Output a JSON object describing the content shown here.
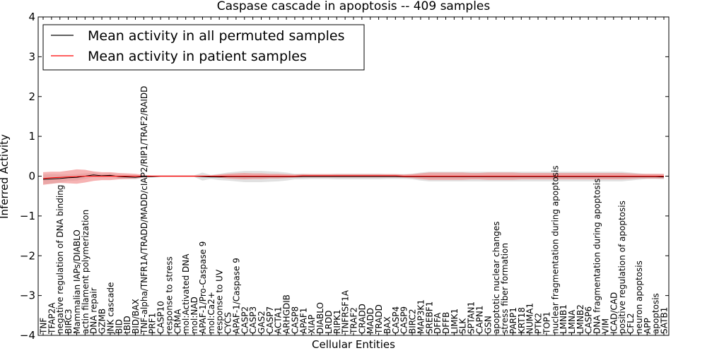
{
  "chart_data": {
    "type": "line",
    "title": "Caspase cascade in apoptosis -- 409 samples",
    "xlabel": "Cellular Entities",
    "ylabel": "Inferred Activity",
    "ylim": [
      -4,
      4
    ],
    "yticks": [
      4,
      3,
      2,
      1,
      0,
      -1,
      -2,
      -3,
      -4
    ],
    "ytick_labels": [
      "4",
      "3",
      "2",
      "1",
      "0",
      "−1",
      "−2",
      "−3",
      "−4"
    ],
    "legend_position": "top-left",
    "categories": [
      "TNF",
      "TFAP2A",
      "negative regulation of DNA binding",
      "BIRC3",
      "Mammalian IAPs/DIABLO",
      "actin filament polymerization",
      "DNA repair",
      "GZMB",
      "JNK cascade",
      "BID",
      "tBID",
      "BID/BAX",
      "TNF-alpha/TNFR1A/TRADD/MADD/cIAP2/RIP1/TRAF2/RAIDD",
      "PRF1",
      "CASP10",
      "response to stress",
      "CRMA",
      "mol:Activated DNA",
      "mol:NAD",
      "APAF-1/Pro-Caspase 9",
      "mol:Ca2+",
      "response to UV",
      "CYCS",
      "APAF-1/Caspase 9",
      "CASP2",
      "CASP3",
      "GAS2",
      "CASP7",
      "ACTA1",
      "ARHGDIB",
      "CASP8",
      "APAF1",
      "XIAP",
      "DIABLO",
      "LRDD",
      "RIPK1",
      "TNFRSF1A",
      "TRAF2",
      "CRADD",
      "MADD",
      "TRADD",
      "BAX",
      "CASP4",
      "CASP9",
      "BIRC2",
      "MAP3K1",
      "SREBF1",
      "DFFA",
      "DFFB",
      "LIMK1",
      "SLK",
      "SPTAN1",
      "CAPN1",
      "GSN",
      "apoptotic nuclear changes",
      "stress fiber formation",
      "PARP1",
      "KRT18",
      "NUMA1",
      "PTK2",
      "TOP1",
      "nuclear fragmentation during apoptosis",
      "LMNB1",
      "LMNA",
      "LMNB2",
      "CASP6",
      "DNA fragmentation during apoptosis",
      "VIM",
      "ICAD/CAD",
      "positive regulation of apoptosis",
      "CFL2",
      "neuron apoptosis",
      "APP",
      "apoptosis",
      "SATB1"
    ],
    "series": [
      {
        "name": "Mean activity in all permuted samples",
        "color": "#000000",
        "values": [
          -0.08,
          -0.07,
          -0.06,
          -0.04,
          -0.03,
          0.0,
          0.03,
          0.01,
          0.02,
          -0.01,
          -0.02,
          -0.03,
          -0.01,
          -0.01,
          0.0,
          0.0,
          0.0,
          0.0,
          0.0,
          -0.01,
          -0.02,
          -0.02,
          -0.01,
          -0.01,
          -0.01,
          -0.01,
          -0.01,
          -0.01,
          -0.01,
          -0.01,
          -0.01,
          -0.01,
          -0.01,
          -0.01,
          -0.01,
          -0.01,
          -0.01,
          -0.01,
          -0.01,
          -0.01,
          -0.01,
          -0.01,
          -0.01,
          -0.01,
          -0.01,
          -0.01,
          -0.01,
          -0.01,
          -0.01,
          -0.01,
          -0.01,
          -0.01,
          -0.01,
          -0.01,
          -0.01,
          -0.01,
          -0.01,
          -0.01,
          -0.01,
          -0.01,
          -0.01,
          -0.01,
          -0.01,
          -0.01,
          -0.01,
          -0.01,
          -0.01,
          -0.01,
          -0.01,
          -0.01,
          -0.01,
          -0.01,
          -0.01,
          -0.01,
          -0.02
        ],
        "spread": [
          0.12,
          0.12,
          0.1,
          0.08,
          0.08,
          0.07,
          0.06,
          0.05,
          0.05,
          0.05,
          0.05,
          0.05,
          0.03,
          0.02,
          0.02,
          0.02,
          0.02,
          0.02,
          0.02,
          0.1,
          0.05,
          0.08,
          0.1,
          0.12,
          0.14,
          0.14,
          0.14,
          0.13,
          0.12,
          0.1,
          0.07,
          0.07,
          0.06,
          0.06,
          0.06,
          0.07,
          0.07,
          0.07,
          0.07,
          0.07,
          0.07,
          0.06,
          0.06,
          0.06,
          0.07,
          0.1,
          0.12,
          0.12,
          0.12,
          0.12,
          0.12,
          0.12,
          0.12,
          0.12,
          0.12,
          0.12,
          0.12,
          0.12,
          0.12,
          0.12,
          0.12,
          0.12,
          0.12,
          0.12,
          0.12,
          0.12,
          0.12,
          0.12,
          0.12,
          0.12,
          0.1,
          0.08,
          0.06,
          0.06,
          0.06
        ]
      },
      {
        "name": "Mean activity in patient samples",
        "color": "#ff0000",
        "values": [
          -0.06,
          -0.04,
          -0.03,
          -0.02,
          -0.01,
          0.0,
          0.0,
          0.0,
          0.0,
          0.0,
          0.0,
          0.0,
          0.0,
          0.0,
          0.0,
          0.0,
          0.0,
          0.0,
          0.0,
          0.0,
          0.0,
          0.0,
          0.0,
          0.0,
          0.0,
          0.0,
          0.0,
          0.0,
          0.0,
          0.0,
          0.0,
          0.01,
          0.01,
          0.01,
          0.01,
          0.01,
          0.01,
          0.01,
          0.01,
          0.01,
          0.01,
          0.01,
          0.01,
          0.0,
          0.0,
          0.0,
          0.0,
          0.0,
          0.0,
          0.0,
          0.0,
          0.0,
          0.0,
          0.0,
          0.0,
          0.0,
          0.0,
          0.0,
          0.0,
          0.0,
          0.0,
          0.0,
          0.0,
          0.0,
          0.0,
          0.0,
          0.0,
          0.0,
          0.0,
          0.0,
          0.0,
          0.0,
          0.0,
          0.0,
          0.0
        ],
        "spread": [
          0.16,
          0.15,
          0.14,
          0.16,
          0.18,
          0.16,
          0.12,
          0.1,
          0.1,
          0.08,
          0.07,
          0.06,
          0.03,
          0.02,
          0.02,
          0.02,
          0.02,
          0.02,
          0.02,
          0.02,
          0.02,
          0.04,
          0.06,
          0.07,
          0.08,
          0.07,
          0.07,
          0.06,
          0.06,
          0.05,
          0.04,
          0.04,
          0.04,
          0.04,
          0.04,
          0.04,
          0.04,
          0.04,
          0.04,
          0.04,
          0.04,
          0.04,
          0.04,
          0.04,
          0.05,
          0.07,
          0.09,
          0.09,
          0.09,
          0.09,
          0.09,
          0.08,
          0.08,
          0.09,
          0.09,
          0.09,
          0.09,
          0.08,
          0.08,
          0.08,
          0.08,
          0.08,
          0.08,
          0.08,
          0.08,
          0.08,
          0.08,
          0.08,
          0.08,
          0.08,
          0.07,
          0.06,
          0.06,
          0.06,
          0.06
        ]
      }
    ]
  }
}
